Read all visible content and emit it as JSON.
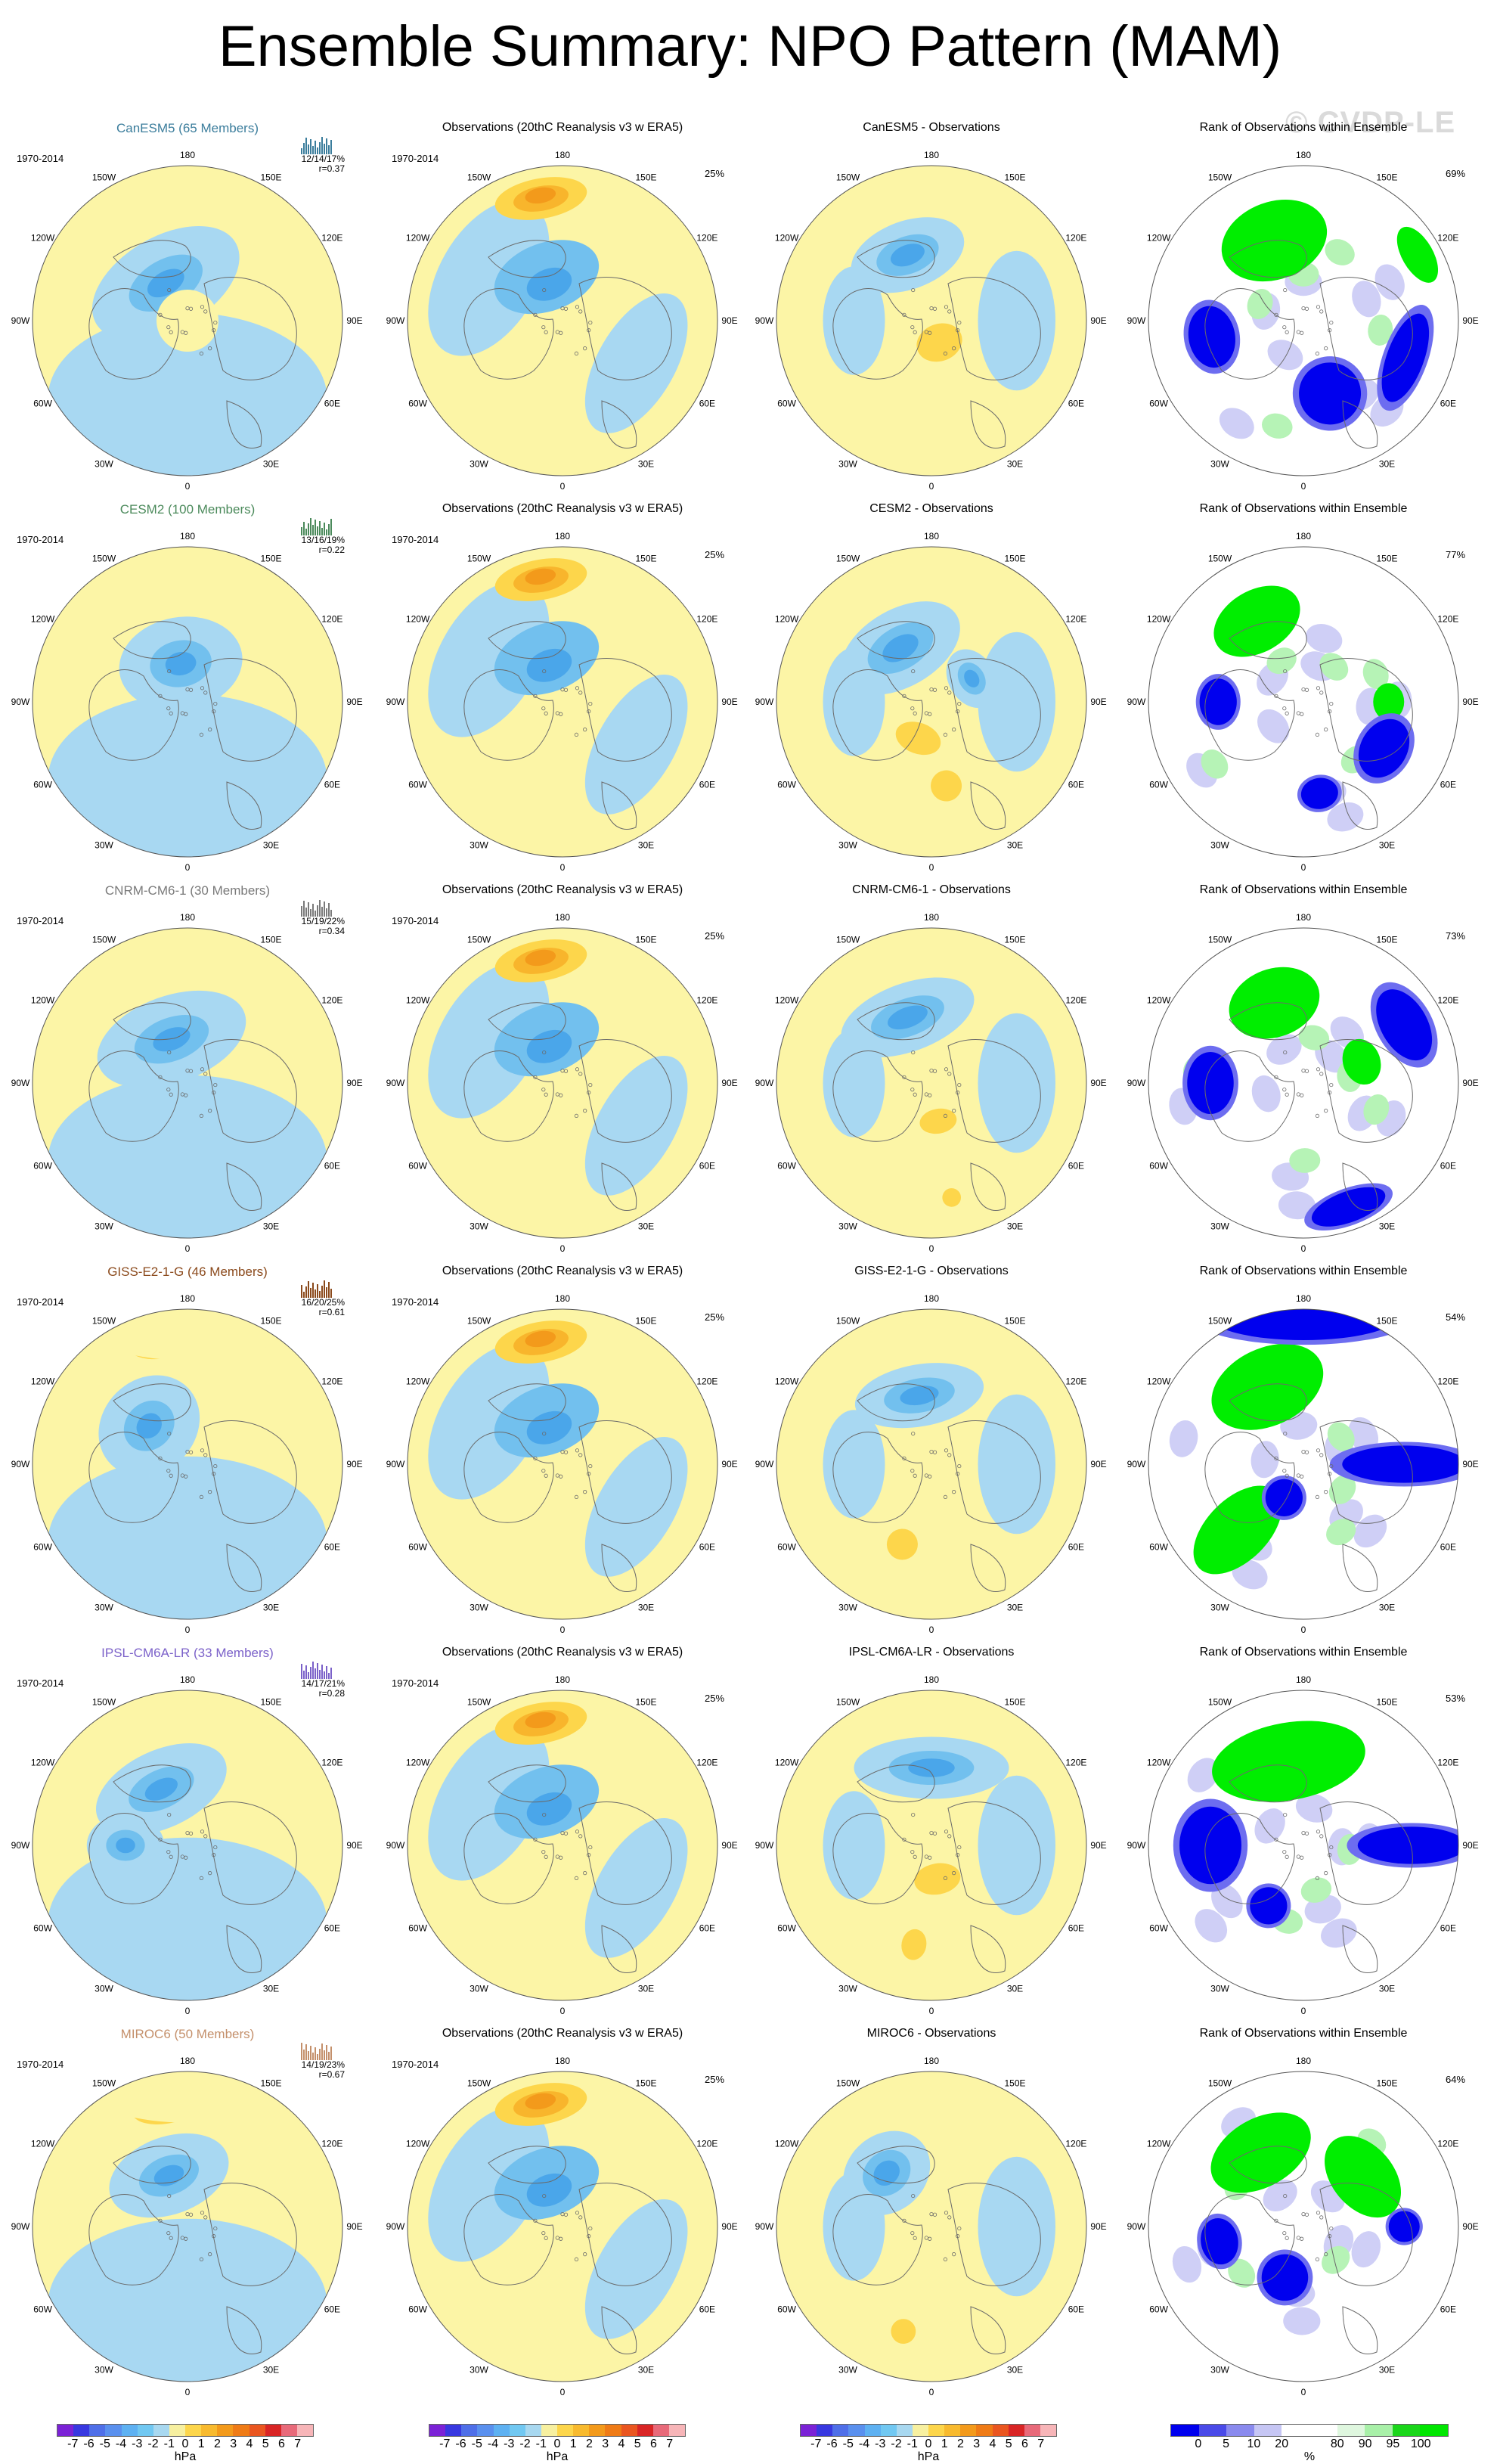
{
  "title": "Ensemble Summary: NPO Pattern (MAM)",
  "watermark": "© CVDP-LE",
  "period": "1970-2014",
  "obs_percent": "25%",
  "obs_title": "Observations (20thC Reanalysis v3 w ERA5)",
  "rank_title": "Rank of Observations within Ensemble",
  "lon_labels": [
    "180",
    "150E",
    "120E",
    "90E",
    "60E",
    "30E",
    "0",
    "30W",
    "60W",
    "90W",
    "120W",
    "150W"
  ],
  "models": [
    {
      "name": "CanESM5 (65 Members)",
      "diff_title": "CanESM5 - Observations",
      "stats_pct": "12/14/17%",
      "stats_r": "r=0.37",
      "rank_pct": "69%",
      "color": "#3b7d9c",
      "features": {
        "neg": [
          [
            -30,
            0.28,
            0.52,
            0.3
          ]
        ],
        "pos": [
          [
            0,
            0,
            0.2,
            0.2
          ]
        ],
        "diffneg": [
          [
            -20,
            0.45,
            0.38,
            0.22
          ]
        ],
        "diffpos": [
          [
            160,
            0.15,
            0.15,
            0.12
          ]
        ],
        "green": [
          [
            -20,
            0.55,
            0.35,
            0.25
          ],
          [
            60,
            0.85,
            0.2,
            0.1
          ]
        ],
        "blue": [
          [
            110,
            0.7,
            0.3,
            0.12
          ],
          [
            160,
            0.5,
            0.2,
            0.2
          ],
          [
            260,
            0.6,
            0.2,
            0.15
          ]
        ]
      }
    },
    {
      "name": "CESM2 (100 Members)",
      "diff_title": "CESM2 - Observations",
      "stats_pct": "13/16/19%",
      "stats_r": "r=0.22",
      "rank_pct": "77%",
      "color": "#4b8a5b",
      "features": {
        "neg": [
          [
            -10,
            0.25,
            0.4,
            0.3
          ]
        ],
        "pos": [],
        "diffneg": [
          [
            -30,
            0.4,
            0.42,
            0.25
          ],
          [
            60,
            0.3,
            0.2,
            0.15
          ]
        ],
        "diffpos": [
          [
            200,
            0.25,
            0.15,
            0.1
          ],
          [
            170,
            0.55,
            0.1,
            0.1
          ]
        ],
        "green": [
          [
            -30,
            0.6,
            0.3,
            0.2
          ],
          [
            90,
            0.55,
            0.12,
            0.1
          ]
        ],
        "blue": [
          [
            120,
            0.6,
            0.2,
            0.15
          ],
          [
            270,
            0.55,
            0.15,
            0.12
          ],
          [
            170,
            0.6,
            0.12,
            0.1
          ]
        ]
      }
    },
    {
      "name": "CNRM-CM6-1 (30 Members)",
      "diff_title": "CNRM-CM6-1 - Observations",
      "stats_pct": "15/19/22%",
      "stats_r": "r=0.34",
      "rank_pct": "73%",
      "color": "#7a7a7a",
      "features": {
        "neg": [
          [
            -20,
            0.3,
            0.5,
            0.28
          ]
        ],
        "pos": [],
        "diffneg": [
          [
            -20,
            0.45,
            0.45,
            0.22
          ]
        ],
        "diffpos": [
          [
            170,
            0.25,
            0.12,
            0.08
          ],
          [
            170,
            0.75,
            0.06,
            0.06
          ]
        ],
        "green": [
          [
            -20,
            0.55,
            0.3,
            0.22
          ],
          [
            70,
            0.4,
            0.15,
            0.12
          ]
        ],
        "blue": [
          [
            60,
            0.75,
            0.25,
            0.15
          ],
          [
            270,
            0.6,
            0.2,
            0.15
          ],
          [
            160,
            0.85,
            0.25,
            0.1
          ]
        ]
      }
    },
    {
      "name": "GISS-E2-1-G (46 Members)",
      "diff_title": "GISS-E2-1-G - Observations",
      "stats_pct": "16/20/25%",
      "stats_r": "r=0.61",
      "rank_pct": "54%",
      "color": "#8b4a1c",
      "features": {
        "neg": [
          [
            -45,
            0.35,
            0.35,
            0.3
          ]
        ],
        "pos": [
          [
            -10,
            0.8,
            0.3,
            0.13
          ]
        ],
        "diffneg": [
          [
            -10,
            0.45,
            0.42,
            0.2
          ]
        ],
        "diffpos": [
          [
            200,
            0.55,
            0.1,
            0.1
          ]
        ],
        "green": [
          [
            -25,
            0.55,
            0.38,
            0.25
          ],
          [
            225,
            0.6,
            0.2,
            0.35
          ]
        ],
        "blue": [
          [
            0,
            0.95,
            0.6,
            0.15
          ],
          [
            90,
            0.65,
            0.12,
            0.4
          ],
          [
            210,
            0.25,
            0.12,
            0.12
          ]
        ]
      }
    },
    {
      "name": "IPSL-CM6A-LR (33 Members)",
      "diff_title": "IPSL-CM6A-LR - Observations",
      "stats_pct": "14/17/21%",
      "stats_r": "r=0.28",
      "rank_pct": "53%",
      "color": "#7b61c9",
      "features": {
        "neg": [
          [
            -25,
            0.4,
            0.45,
            0.25
          ],
          [
            -90,
            0.4,
            0.2,
            0.25
          ]
        ],
        "pos": [
          [
            -10,
            0.8,
            0.1,
            0.08
          ]
        ],
        "diffneg": [
          [
            0,
            0.5,
            0.5,
            0.2
          ]
        ],
        "diffpos": [
          [
            170,
            0.22,
            0.15,
            0.1
          ],
          [
            190,
            0.65,
            0.08,
            0.1
          ]
        ],
        "green": [
          [
            -10,
            0.55,
            0.5,
            0.25
          ]
        ],
        "blue": [
          [
            270,
            0.6,
            0.25,
            0.2
          ],
          [
            90,
            0.7,
            0.12,
            0.35
          ],
          [
            210,
            0.45,
            0.12,
            0.12
          ]
        ]
      }
    },
    {
      "name": "MIROC6 (50 Members)",
      "diff_title": "MIROC6 - Observations",
      "stats_pct": "14/19/23%",
      "stats_r": "r=0.67",
      "rank_pct": "64%",
      "color": "#c4906b",
      "features": {
        "neg": [
          [
            -20,
            0.35,
            0.4,
            0.25
          ]
        ],
        "pos": [
          [
            -10,
            0.78,
            0.28,
            0.13
          ]
        ],
        "diffneg": [
          [
            -40,
            0.45,
            0.3,
            0.25
          ]
        ],
        "diffpos": [
          [
            195,
            0.7,
            0.08,
            0.08
          ]
        ],
        "green": [
          [
            -30,
            0.55,
            0.35,
            0.22
          ],
          [
            50,
            0.5,
            0.3,
            0.2
          ]
        ],
        "blue": [
          [
            200,
            0.35,
            0.15,
            0.15
          ],
          [
            90,
            0.65,
            0.1,
            0.1
          ],
          [
            260,
            0.55,
            0.15,
            0.12
          ]
        ]
      }
    }
  ],
  "colorbar_hpa": {
    "colors": [
      "#7b22d6",
      "#3838e0",
      "#4f6fe8",
      "#5a90ee",
      "#5eb1f2",
      "#71c8f2",
      "#a8d8f0",
      "#f7f0a0",
      "#fdd64b",
      "#f8ba2e",
      "#f39a1b",
      "#ef7b16",
      "#ea5620",
      "#d92525",
      "#e86a7a",
      "#f7b5b8"
    ],
    "labels": [
      "-7",
      "-6",
      "-5",
      "-4",
      "-3",
      "-2",
      "-1",
      "0",
      "1",
      "2",
      "3",
      "4",
      "5",
      "6",
      "7"
    ],
    "units": "hPa"
  },
  "colorbar_rank": {
    "colors": [
      "#0000ee",
      "#4a4ae8",
      "#8a8aee",
      "#c6c6f4",
      "#ffffff",
      "#ffffff",
      "#dff7df",
      "#a8f0a8",
      "#1ad61a",
      "#00e600"
    ],
    "labels": [
      "0",
      "5",
      "10",
      "20",
      "80",
      "90",
      "95",
      "100"
    ],
    "units": "%"
  }
}
